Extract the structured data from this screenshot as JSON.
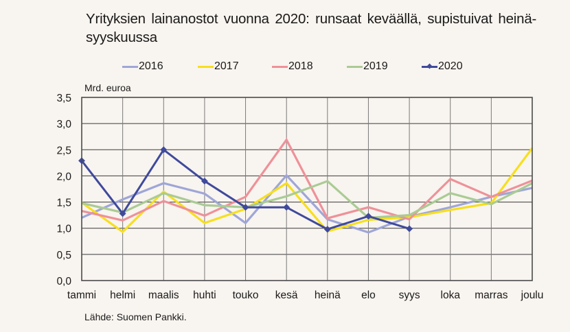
{
  "chart_data": {
    "type": "line",
    "title": "Yrityksien lainanostot vuonna 2020: runsaat keväällä, supistuivat heinä-syyskuussa",
    "ylabel": "Mrd. euroa",
    "xlabel": "",
    "ylim": [
      0,
      3.5
    ],
    "yticks": [
      "0,0",
      "0,5",
      "1,0",
      "1,5",
      "2,0",
      "2,5",
      "3,0",
      "3,5"
    ],
    "ytick_values": [
      0,
      0.5,
      1.0,
      1.5,
      2.0,
      2.5,
      3.0,
      3.5
    ],
    "grid": true,
    "legend_position": "top",
    "categories": [
      "tammi",
      "helmi",
      "maalis",
      "huhti",
      "touko",
      "kesä",
      "heinä",
      "elo",
      "syys",
      "loka",
      "marras",
      "joulu"
    ],
    "series": [
      {
        "name": "2016",
        "color": "#9ea6d8",
        "marker": false,
        "values": [
          1.2,
          1.55,
          1.86,
          1.66,
          1.1,
          2.01,
          1.17,
          0.92,
          1.22,
          1.4,
          1.6,
          1.77
        ]
      },
      {
        "name": "2017",
        "color": "#f7df1c",
        "marker": false,
        "values": [
          1.49,
          0.93,
          1.7,
          1.1,
          1.37,
          1.86,
          0.94,
          1.16,
          1.21,
          1.35,
          1.48,
          2.53
        ]
      },
      {
        "name": "2018",
        "color": "#ee9199",
        "marker": false,
        "values": [
          1.33,
          1.15,
          1.52,
          1.24,
          1.6,
          2.69,
          1.19,
          1.4,
          1.17,
          1.94,
          1.6,
          1.91
        ]
      },
      {
        "name": "2019",
        "color": "#aacb94",
        "marker": false,
        "values": [
          1.48,
          1.3,
          1.67,
          1.44,
          1.4,
          1.61,
          1.9,
          1.2,
          1.25,
          1.67,
          1.46,
          1.86
        ]
      },
      {
        "name": "2020",
        "color": "#3f4a9c",
        "marker": true,
        "values": [
          2.29,
          1.28,
          2.5,
          1.9,
          1.4,
          1.4,
          0.98,
          1.23,
          0.99,
          null,
          null,
          null
        ]
      }
    ]
  },
  "footer": {
    "source": "Lähde: Suomen Pankki."
  }
}
